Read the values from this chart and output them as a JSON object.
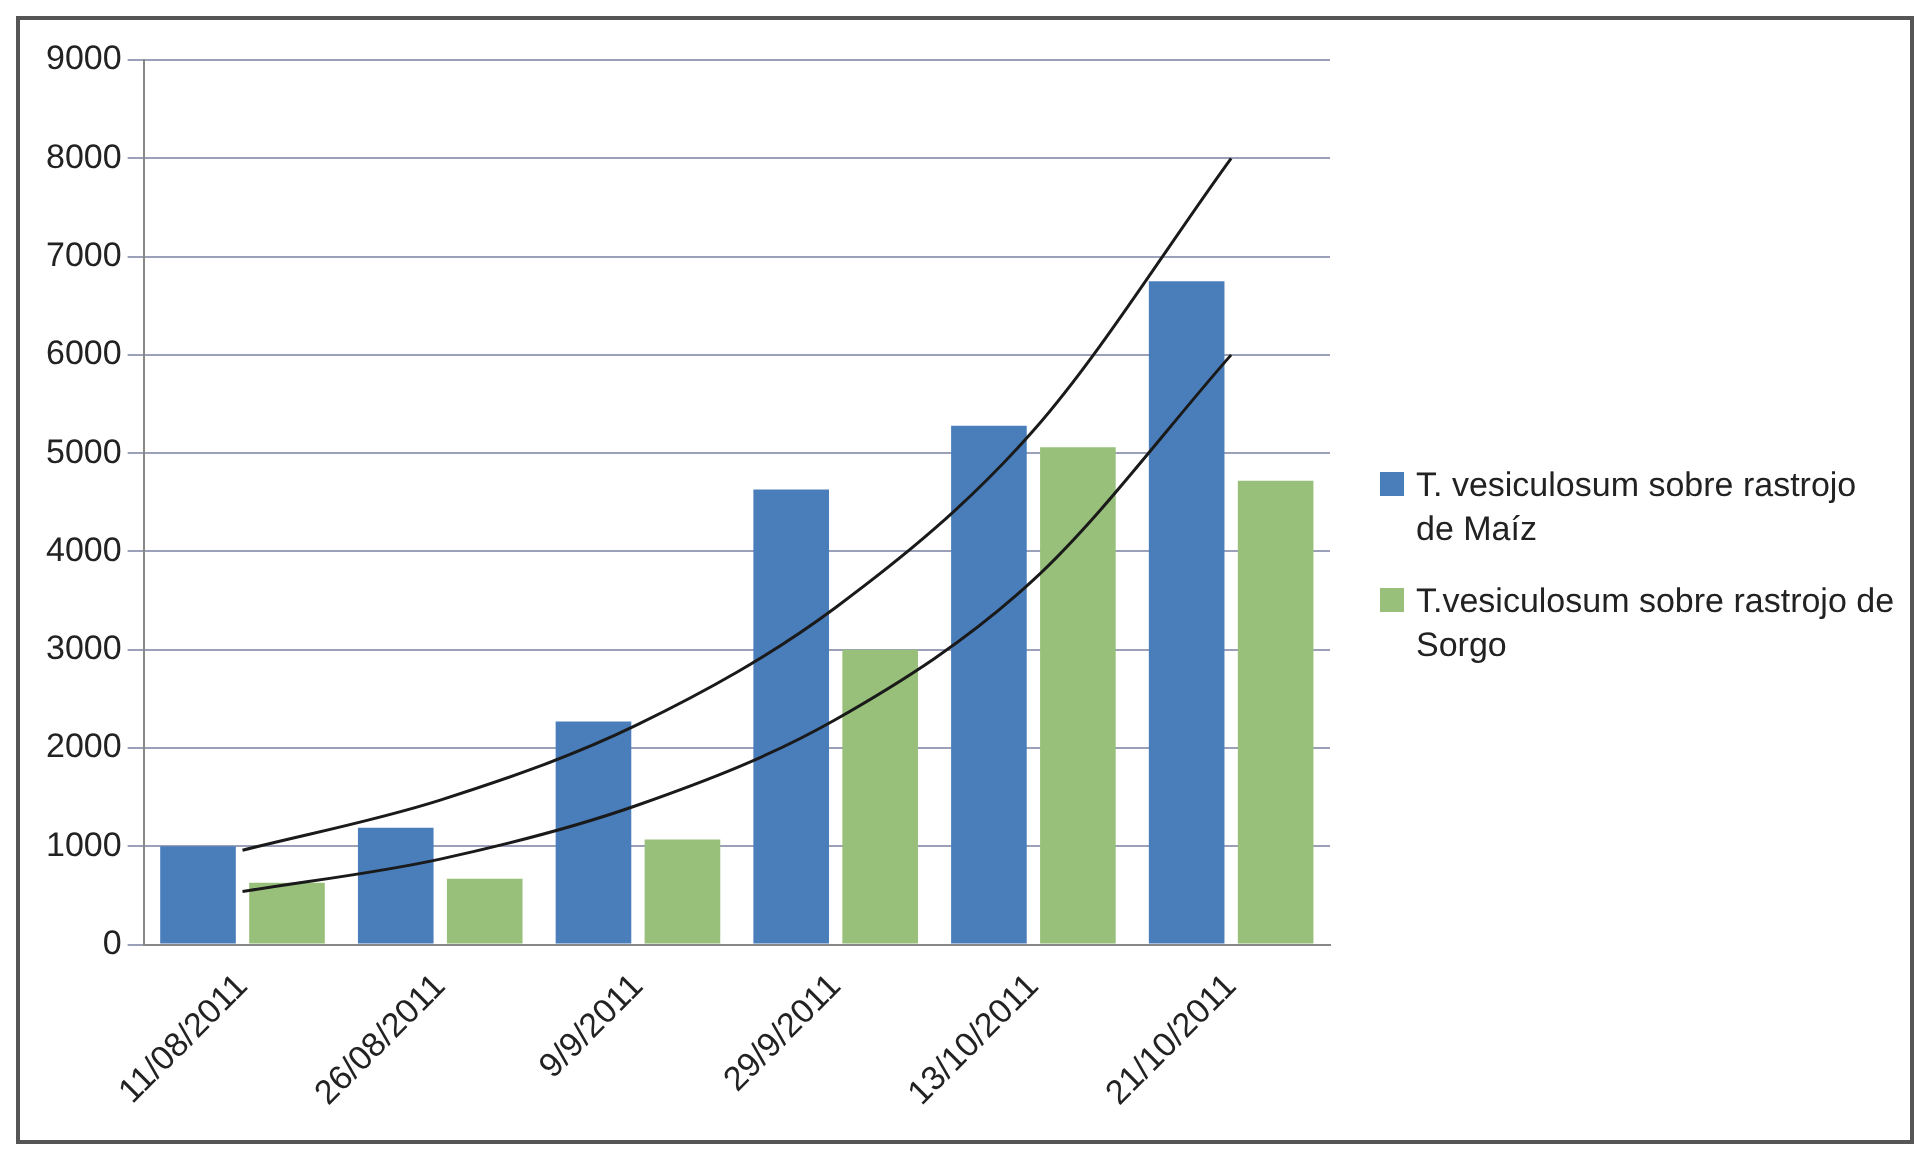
{
  "chart_data": {
    "type": "bar",
    "categories": [
      "11/08/2011",
      "26/08/2011",
      "9/9/2011",
      "29/9/2011",
      "13/10/2011",
      "21/10/2011"
    ],
    "series": [
      {
        "name": "T. vesiculosum sobre rastrojo de Maíz",
        "color": "#4a7ebb",
        "values": [
          1000,
          1190,
          2270,
          4630,
          5280,
          6750
        ]
      },
      {
        "name": "T.vesiculosum sobre rastrojo de Sorgo",
        "color": "#98c07a",
        "values": [
          630,
          670,
          1070,
          3000,
          5060,
          4720
        ]
      },
      {
        "type": "line",
        "color": "#1a1a1a",
        "marker": "none",
        "values": [
          960,
          1470,
          2240,
          3430,
          5230,
          8000
        ]
      },
      {
        "type": "line",
        "color": "#1a1a1a",
        "marker": "none",
        "values": [
          540,
          870,
          1420,
          2290,
          3710,
          6000
        ]
      }
    ],
    "ylim": [
      0,
      9000
    ],
    "yticks": [
      0,
      1000,
      2000,
      3000,
      4000,
      5000,
      6000,
      7000,
      8000,
      9000
    ],
    "grid": "y",
    "legend": "right"
  }
}
